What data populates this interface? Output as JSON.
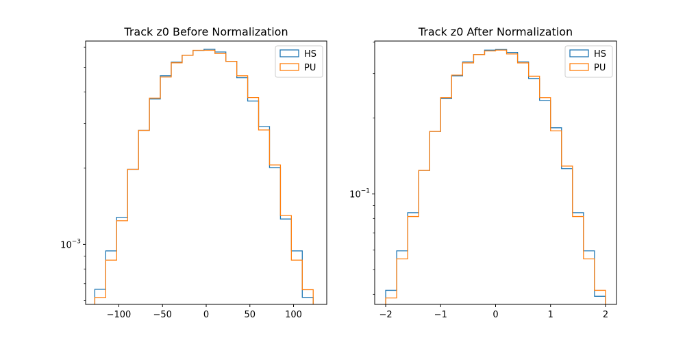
{
  "chart_data": [
    {
      "type": "histogram",
      "title": "Track z0 Before Normalization",
      "xlabel": "",
      "ylabel": "",
      "yscale": "log",
      "xlim": [
        -138,
        138
      ],
      "ylim": [
        0.00058,
        0.00635
      ],
      "xticks": [
        -100,
        -50,
        0,
        50,
        100
      ],
      "xtick_labels": [
        "−100",
        "−50",
        "0",
        "50",
        "100"
      ],
      "yticks": [
        0.001
      ],
      "ytick_labels": [
        {
          "base": "10",
          "exp": "−3"
        }
      ],
      "bin_edges": [
        -127.5,
        -115,
        -102.5,
        -90,
        -77.5,
        -65,
        -52.5,
        -40,
        -27.5,
        -15,
        -2.5,
        10,
        22.5,
        35,
        47.5,
        60,
        72.5,
        85,
        97.5,
        110,
        122.5
      ],
      "series": [
        {
          "name": "HS",
          "color": "#1f77b4",
          "values": [
            0.000665,
            0.000943,
            0.00128,
            0.00198,
            0.00282,
            0.00375,
            0.00463,
            0.00524,
            0.00558,
            0.00583,
            0.00589,
            0.00575,
            0.00528,
            0.00455,
            0.00368,
            0.00292,
            0.00201,
            0.00126,
            0.000943,
            0.000618
          ]
        },
        {
          "name": "PU",
          "color": "#ff7f0e",
          "values": [
            0.000617,
            0.000867,
            0.00124,
            0.00198,
            0.00282,
            0.00378,
            0.00458,
            0.00521,
            0.00558,
            0.00584,
            0.00584,
            0.00567,
            0.00528,
            0.00463,
            0.0038,
            0.00283,
            0.00206,
            0.0013,
            0.000867,
            0.000663
          ]
        }
      ],
      "legend": {
        "position": "top-right",
        "entries": [
          "HS",
          "PU"
        ]
      },
      "grid": false
    },
    {
      "type": "histogram",
      "title": "Track z0 After Normalization",
      "xlabel": "",
      "ylabel": "",
      "yscale": "log",
      "xlim": [
        -2.2,
        2.2
      ],
      "ylim": [
        0.0365,
        0.404
      ],
      "xticks": [
        -2,
        -1,
        0,
        1,
        2
      ],
      "xtick_labels": [
        "−2",
        "−1",
        "0",
        "1",
        "2"
      ],
      "yticks": [
        0.1
      ],
      "ytick_labels": [
        {
          "base": "10",
          "exp": "−1"
        }
      ],
      "bin_edges": [
        -2,
        -1.8,
        -1.6,
        -1.4,
        -1.2,
        -1,
        -0.8,
        -0.6,
        -0.4,
        -0.2,
        0,
        0.2,
        0.4,
        0.6,
        0.8,
        1,
        1.2,
        1.4,
        1.6,
        1.8,
        2
      ],
      "series": [
        {
          "name": "HS",
          "color": "#1f77b4",
          "values": [
            0.0415,
            0.0595,
            0.0843,
            0.124,
            0.177,
            0.239,
            0.294,
            0.334,
            0.357,
            0.372,
            0.374,
            0.364,
            0.334,
            0.287,
            0.235,
            0.183,
            0.126,
            0.0843,
            0.0595,
            0.0393
          ]
        },
        {
          "name": "PU",
          "color": "#ff7f0e",
          "values": [
            0.0387,
            0.0553,
            0.0814,
            0.124,
            0.177,
            0.241,
            0.296,
            0.331,
            0.357,
            0.369,
            0.372,
            0.359,
            0.331,
            0.293,
            0.241,
            0.178,
            0.129,
            0.0814,
            0.0553,
            0.0415
          ]
        }
      ],
      "legend": {
        "position": "top-right",
        "entries": [
          "HS",
          "PU"
        ]
      },
      "grid": false
    }
  ]
}
